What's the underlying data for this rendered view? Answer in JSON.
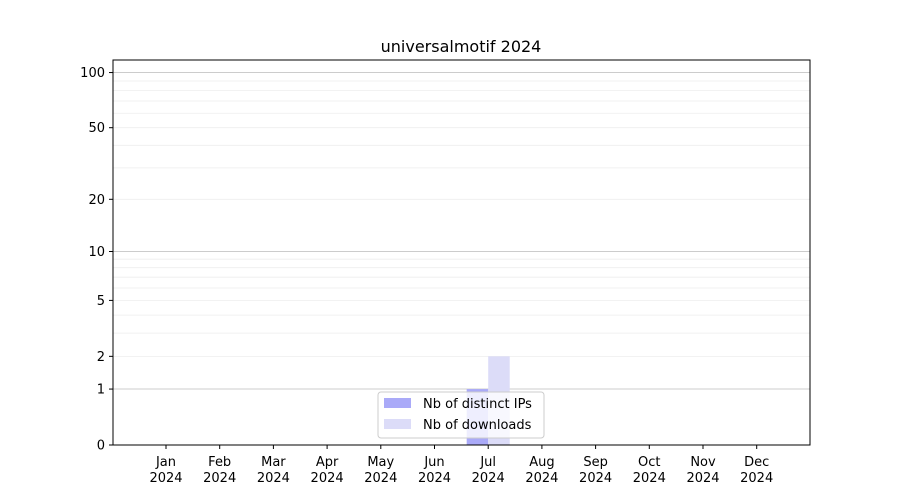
{
  "chart_data": {
    "type": "bar",
    "title": "universalmotif 2024",
    "xlabel": "",
    "ylabel": "",
    "yscale": "symlog",
    "ylim": [
      0,
      117
    ],
    "yticks": [
      0,
      1,
      2,
      5,
      10,
      20,
      50,
      100
    ],
    "grid": true,
    "legend_position": "bottom-center",
    "categories": [
      [
        "Jan",
        "2024"
      ],
      [
        "Feb",
        "2024"
      ],
      [
        "Mar",
        "2024"
      ],
      [
        "Apr",
        "2024"
      ],
      [
        "May",
        "2024"
      ],
      [
        "Jun",
        "2024"
      ],
      [
        "Jul",
        "2024"
      ],
      [
        "Aug",
        "2024"
      ],
      [
        "Sep",
        "2024"
      ],
      [
        "Oct",
        "2024"
      ],
      [
        "Nov",
        "2024"
      ],
      [
        "Dec",
        "2024"
      ]
    ],
    "series": [
      {
        "name": "Nb of distinct IPs",
        "color": "#aaaaf8",
        "values": [
          0,
          0,
          0,
          0,
          0,
          0,
          1,
          0,
          0,
          0,
          0,
          0
        ]
      },
      {
        "name": "Nb of downloads",
        "color": "#dcdcf8",
        "values": [
          0,
          0,
          0,
          0,
          0,
          0,
          2,
          0,
          0,
          0,
          0,
          0
        ]
      }
    ]
  }
}
